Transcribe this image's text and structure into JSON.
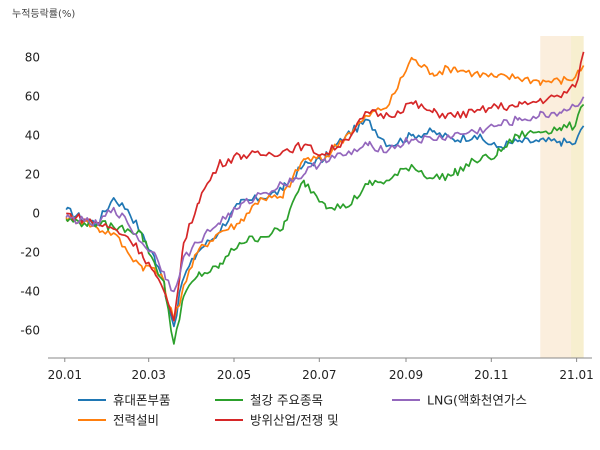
{
  "chart_data": {
    "type": "line",
    "ylabel": "누적등락률(%)",
    "x_ticks": [
      "20.01",
      "20.03",
      "20.05",
      "20.07",
      "20.09",
      "20.11",
      "21.01"
    ],
    "y_ticks": [
      80,
      60,
      40,
      20,
      0,
      -20,
      -40,
      -60
    ],
    "xlim": [
      "2019-12-20",
      "2021-01-12"
    ],
    "ylim": [
      -76,
      91
    ],
    "grid": false,
    "legend_position": "bottom",
    "highlight_bands": [
      {
        "start": "2020-12-06",
        "end": "2021-01-06",
        "color": "#fbeedd"
      },
      {
        "start": "2020-12-28",
        "end": "2021-01-06",
        "color": "#f7efcf"
      }
    ],
    "series": [
      {
        "name": "휴대폰부품",
        "color": "#1f77b4",
        "points": [
          [
            "2020-01-02",
            2
          ],
          [
            "2020-01-15",
            -3
          ],
          [
            "2020-01-25",
            -5
          ],
          [
            "2020-02-05",
            8
          ],
          [
            "2020-02-15",
            2
          ],
          [
            "2020-02-25",
            -10
          ],
          [
            "2020-03-05",
            -22
          ],
          [
            "2020-03-12",
            -35
          ],
          [
            "2020-03-19",
            -58
          ],
          [
            "2020-03-25",
            -35
          ],
          [
            "2020-04-05",
            -20
          ],
          [
            "2020-04-20",
            -10
          ],
          [
            "2020-05-05",
            5
          ],
          [
            "2020-05-20",
            8
          ],
          [
            "2020-06-05",
            12
          ],
          [
            "2020-06-20",
            25
          ],
          [
            "2020-07-05",
            28
          ],
          [
            "2020-07-20",
            40
          ],
          [
            "2020-08-05",
            48
          ],
          [
            "2020-08-20",
            35
          ],
          [
            "2020-09-05",
            40
          ],
          [
            "2020-09-20",
            42
          ],
          [
            "2020-10-05",
            38
          ],
          [
            "2020-10-20",
            40
          ],
          [
            "2020-11-05",
            34
          ],
          [
            "2020-11-20",
            37
          ],
          [
            "2020-12-05",
            37
          ],
          [
            "2020-12-20",
            37
          ],
          [
            "2020-12-31",
            36
          ],
          [
            "2021-01-06",
            45
          ]
        ]
      },
      {
        "name": "전력설비",
        "color": "#ff7f0e",
        "points": [
          [
            "2020-01-02",
            -2
          ],
          [
            "2020-01-15",
            -4
          ],
          [
            "2020-01-25",
            -8
          ],
          [
            "2020-02-05",
            -10
          ],
          [
            "2020-02-15",
            -20
          ],
          [
            "2020-02-25",
            -27
          ],
          [
            "2020-03-05",
            -28
          ],
          [
            "2020-03-12",
            -35
          ],
          [
            "2020-03-19",
            -55
          ],
          [
            "2020-03-25",
            -40
          ],
          [
            "2020-04-05",
            -20
          ],
          [
            "2020-04-20",
            -10
          ],
          [
            "2020-05-05",
            -5
          ],
          [
            "2020-05-20",
            8
          ],
          [
            "2020-06-05",
            8
          ],
          [
            "2020-06-20",
            28
          ],
          [
            "2020-07-05",
            28
          ],
          [
            "2020-07-20",
            40
          ],
          [
            "2020-08-05",
            50
          ],
          [
            "2020-08-20",
            56
          ],
          [
            "2020-09-05",
            80
          ],
          [
            "2020-09-20",
            72
          ],
          [
            "2020-10-05",
            75
          ],
          [
            "2020-10-20",
            72
          ],
          [
            "2020-11-05",
            70
          ],
          [
            "2020-11-20",
            70
          ],
          [
            "2020-12-05",
            68
          ],
          [
            "2020-12-20",
            68
          ],
          [
            "2020-12-31",
            70
          ],
          [
            "2021-01-06",
            76
          ]
        ]
      },
      {
        "name": "철강 주요종목",
        "color": "#2ca02c",
        "points": [
          [
            "2020-01-02",
            -3
          ],
          [
            "2020-01-15",
            -5
          ],
          [
            "2020-01-25",
            -5
          ],
          [
            "2020-02-05",
            -7
          ],
          [
            "2020-02-15",
            -8
          ],
          [
            "2020-02-25",
            -10
          ],
          [
            "2020-03-05",
            -25
          ],
          [
            "2020-03-12",
            -35
          ],
          [
            "2020-03-19",
            -67
          ],
          [
            "2020-03-25",
            -45
          ],
          [
            "2020-04-05",
            -32
          ],
          [
            "2020-04-20",
            -28
          ],
          [
            "2020-05-05",
            -15
          ],
          [
            "2020-05-20",
            -12
          ],
          [
            "2020-06-05",
            -8
          ],
          [
            "2020-06-20",
            17
          ],
          [
            "2020-07-05",
            5
          ],
          [
            "2020-07-20",
            3
          ],
          [
            "2020-08-05",
            15
          ],
          [
            "2020-08-20",
            17
          ],
          [
            "2020-09-05",
            25
          ],
          [
            "2020-09-20",
            18
          ],
          [
            "2020-10-05",
            20
          ],
          [
            "2020-10-20",
            27
          ],
          [
            "2020-11-05",
            30
          ],
          [
            "2020-11-20",
            40
          ],
          [
            "2020-12-05",
            42
          ],
          [
            "2020-12-20",
            44
          ],
          [
            "2020-12-31",
            45
          ],
          [
            "2021-01-06",
            56
          ]
        ]
      },
      {
        "name": "방위산업/전쟁 및",
        "color": "#d62728",
        "points": [
          [
            "2020-01-02",
            0
          ],
          [
            "2020-01-15",
            -3
          ],
          [
            "2020-01-25",
            -5
          ],
          [
            "2020-02-05",
            -8
          ],
          [
            "2020-02-15",
            -12
          ],
          [
            "2020-02-25",
            -20
          ],
          [
            "2020-03-05",
            -30
          ],
          [
            "2020-03-12",
            -40
          ],
          [
            "2020-03-19",
            -55
          ],
          [
            "2020-03-25",
            -20
          ],
          [
            "2020-04-05",
            5
          ],
          [
            "2020-04-20",
            25
          ],
          [
            "2020-05-05",
            30
          ],
          [
            "2020-05-20",
            30
          ],
          [
            "2020-06-05",
            32
          ],
          [
            "2020-06-20",
            35
          ],
          [
            "2020-07-05",
            30
          ],
          [
            "2020-07-20",
            38
          ],
          [
            "2020-08-05",
            52
          ],
          [
            "2020-08-20",
            50
          ],
          [
            "2020-09-05",
            57
          ],
          [
            "2020-09-20",
            52
          ],
          [
            "2020-10-05",
            50
          ],
          [
            "2020-10-20",
            52
          ],
          [
            "2020-11-05",
            55
          ],
          [
            "2020-11-20",
            55
          ],
          [
            "2020-12-05",
            58
          ],
          [
            "2020-12-20",
            60
          ],
          [
            "2020-12-31",
            65
          ],
          [
            "2021-01-06",
            83
          ]
        ]
      },
      {
        "name": "LNG(액화천연가스",
        "color": "#9467bd",
        "points": [
          [
            "2020-01-02",
            -2
          ],
          [
            "2020-01-15",
            -4
          ],
          [
            "2020-01-25",
            -6
          ],
          [
            "2020-02-05",
            3
          ],
          [
            "2020-02-15",
            -5
          ],
          [
            "2020-02-25",
            -15
          ],
          [
            "2020-03-05",
            -20
          ],
          [
            "2020-03-12",
            -30
          ],
          [
            "2020-03-19",
            -40
          ],
          [
            "2020-03-25",
            -25
          ],
          [
            "2020-04-05",
            -15
          ],
          [
            "2020-04-20",
            -5
          ],
          [
            "2020-05-05",
            3
          ],
          [
            "2020-05-20",
            10
          ],
          [
            "2020-06-05",
            15
          ],
          [
            "2020-06-20",
            20
          ],
          [
            "2020-07-05",
            28
          ],
          [
            "2020-07-20",
            30
          ],
          [
            "2020-08-05",
            35
          ],
          [
            "2020-08-20",
            33
          ],
          [
            "2020-09-05",
            38
          ],
          [
            "2020-09-20",
            38
          ],
          [
            "2020-10-05",
            40
          ],
          [
            "2020-10-20",
            42
          ],
          [
            "2020-11-05",
            45
          ],
          [
            "2020-11-20",
            48
          ],
          [
            "2020-12-05",
            50
          ],
          [
            "2020-12-20",
            52
          ],
          [
            "2020-12-31",
            55
          ],
          [
            "2021-01-06",
            60
          ]
        ]
      }
    ]
  }
}
